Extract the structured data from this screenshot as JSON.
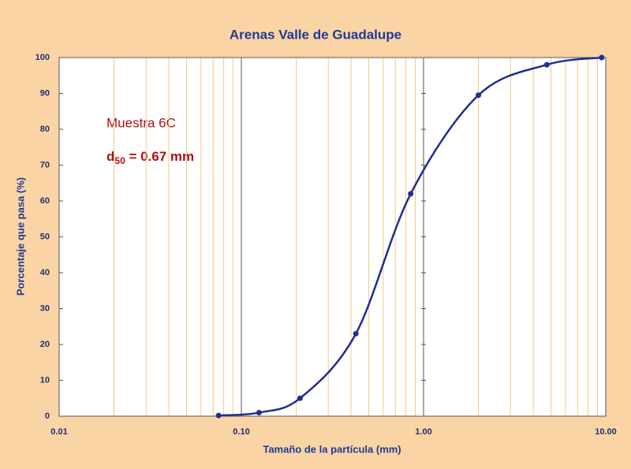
{
  "chart_data": {
    "type": "line",
    "title": "Arenas Valle de Guadalupe",
    "x_label": "Tamaño de la partícula (mm)",
    "y_label": "Porcentaje que pasa (%)",
    "annotations": {
      "sample": "Muestra 6C",
      "d50": {
        "base": "d",
        "sub": "50",
        "rest": " = 0.67 mm"
      }
    },
    "x_log": true,
    "minor_grid": true,
    "xlim": [
      0.01,
      10
    ],
    "xticks": [
      0.01,
      {
        "value": 0.1,
        "label": "0.10"
      },
      {
        "value": 1,
        "label": "1.00"
      },
      {
        "value": 10,
        "label": "10.00"
      }
    ],
    "ylim": [
      0,
      100
    ],
    "yticks": [
      0,
      10,
      20,
      30,
      40,
      50,
      60,
      70,
      80,
      90,
      100
    ],
    "series": [
      {
        "name": "Muestra 6C",
        "color": "#1f2f8f",
        "x": [
          0.075,
          0.125,
          0.21,
          0.425,
          0.85,
          2.0,
          4.75,
          9.5
        ],
        "values": [
          0.2,
          1,
          5,
          23,
          62,
          89.5,
          98,
          100
        ]
      }
    ]
  }
}
